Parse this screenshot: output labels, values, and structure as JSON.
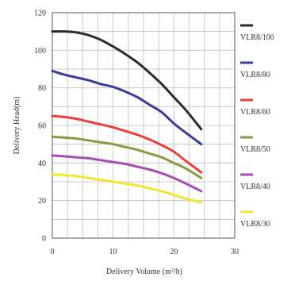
{
  "chart_data": {
    "type": "line",
    "xlabel": "Delivery Volume (m³/h)",
    "ylabel": "Delivery Head(m)",
    "xlim": [
      0,
      30
    ],
    "ylim": [
      0,
      120
    ],
    "x_ticks": [
      0,
      10,
      20,
      30
    ],
    "y_ticks": [
      0,
      20,
      40,
      60,
      80,
      100,
      120
    ],
    "grid": true,
    "legend_position": "right",
    "series": [
      {
        "name": "VLR8/100",
        "color": "#2b2b2b",
        "x": [
          0,
          2,
          4,
          6,
          8,
          10,
          12,
          14,
          16,
          18,
          20,
          22,
          24.5
        ],
        "y": [
          110,
          110,
          109.5,
          108,
          105.5,
          102,
          98,
          93.5,
          88,
          82,
          75,
          68,
          58
        ]
      },
      {
        "name": "VLR8/80",
        "color": "#3b3b9e",
        "x": [
          0,
          2,
          4,
          6,
          8,
          10,
          12,
          14,
          16,
          18,
          20,
          22,
          24.5
        ],
        "y": [
          89,
          87,
          85.5,
          84,
          82,
          80.5,
          78,
          75,
          71,
          67,
          61,
          56,
          50
        ]
      },
      {
        "name": "VLR8/60",
        "color": "#e8413a",
        "x": [
          0,
          2,
          4,
          6,
          8,
          10,
          12,
          14,
          16,
          18,
          20,
          22,
          24.5
        ],
        "y": [
          65,
          64.5,
          63.5,
          62,
          60.5,
          59,
          57,
          55,
          52.5,
          49.5,
          46,
          41,
          35
        ]
      },
      {
        "name": "VLR8/50",
        "color": "#8a9a3e",
        "x": [
          0,
          2,
          4,
          6,
          8,
          10,
          12,
          14,
          16,
          18,
          20,
          22,
          24.5
        ],
        "y": [
          54,
          53.5,
          53,
          52,
          51,
          50,
          48.5,
          47,
          45,
          43,
          40,
          37,
          32
        ]
      },
      {
        "name": "VLR8/40",
        "color": "#a64fb2",
        "x": [
          0,
          2,
          4,
          6,
          8,
          10,
          12,
          14,
          16,
          18,
          20,
          22,
          24.5
        ],
        "y": [
          44,
          43.5,
          43,
          42.5,
          41.5,
          40.5,
          39.5,
          38,
          36.5,
          34.5,
          32,
          29,
          25
        ]
      },
      {
        "name": "VLR8/30",
        "color": "#f0e62a",
        "x": [
          0,
          2,
          4,
          6,
          8,
          10,
          12,
          14,
          16,
          18,
          20,
          22,
          24.5
        ],
        "y": [
          34,
          33.5,
          33,
          32,
          31,
          30,
          29,
          28,
          26.5,
          25,
          23,
          21,
          19
        ]
      }
    ]
  }
}
